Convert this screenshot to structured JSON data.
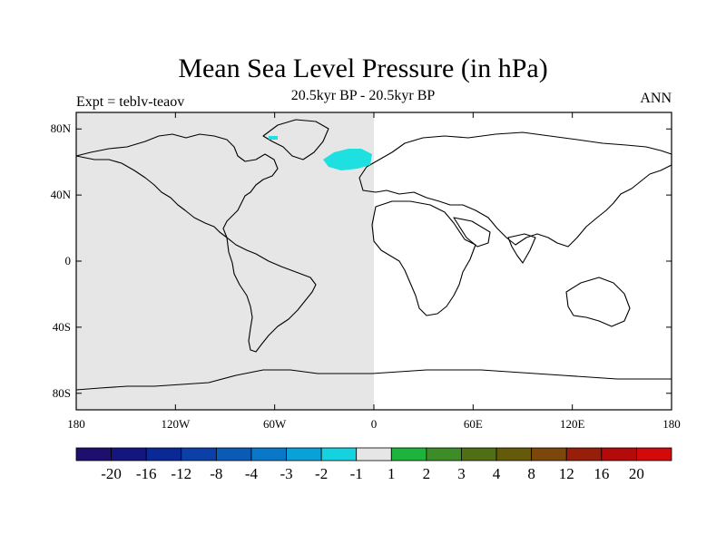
{
  "title": "Mean Sea Level Pressure (in hPa)",
  "subtitle": "20.5kyr BP - 20.5kyr BP",
  "left_label": "Expt = teblv-teaov",
  "right_label": "ANN",
  "map": {
    "projection": "cylindrical equidistant",
    "lon_range": [
      -180,
      180
    ],
    "lat_range": [
      -90,
      90
    ],
    "x_ticks": [
      {
        "lon": -180,
        "label": "180"
      },
      {
        "lon": -120,
        "label": "120W"
      },
      {
        "lon": -60,
        "label": "60W"
      },
      {
        "lon": 0,
        "label": "0"
      },
      {
        "lon": 60,
        "label": "60E"
      },
      {
        "lon": 120,
        "label": "120E"
      },
      {
        "lon": 180,
        "label": "180"
      }
    ],
    "y_ticks": [
      {
        "lat": 80,
        "label": "80N"
      },
      {
        "lat": 40,
        "label": "40N"
      },
      {
        "lat": 0,
        "label": "0"
      },
      {
        "lat": -40,
        "label": "40S"
      },
      {
        "lat": -80,
        "label": "80S"
      }
    ],
    "western_hemisphere_fill": "#e6e6e6",
    "eastern_hemisphere_fill": "#ffffff",
    "anomaly_region_color": "#1ee0e0"
  },
  "colorbar": {
    "colors": [
      "#1e0f6e",
      "#14157e",
      "#0a2896",
      "#0a40a8",
      "#0a5ab8",
      "#0a78c8",
      "#0aa0d8",
      "#14d2e0",
      "#e6e6e6",
      "#1eb43c",
      "#3c8c28",
      "#506e14",
      "#645a0a",
      "#7d460a",
      "#961e0a",
      "#b40a0a",
      "#d20a0a"
    ],
    "labels": [
      "-20",
      "-16",
      "-12",
      "-8",
      "-4",
      "-3",
      "-2",
      "-1",
      "1",
      "2",
      "3",
      "4",
      "8",
      "12",
      "16",
      "20"
    ]
  }
}
